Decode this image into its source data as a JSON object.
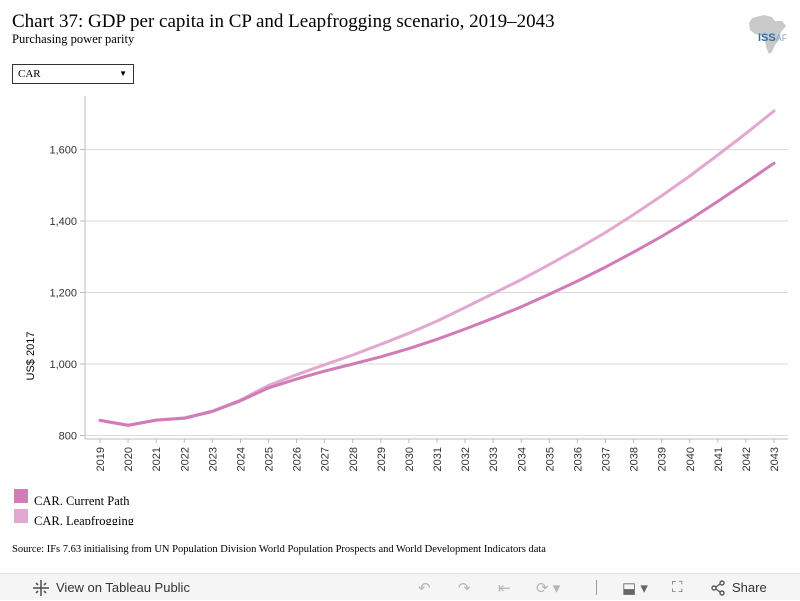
{
  "header": {
    "title": "Chart 37: GDP per capita in CP and Leapfrogging scenario, 2019–2043",
    "subtitle": "Purchasing power parity",
    "logo_text": "ISS",
    "logo_suffix": "AF"
  },
  "filter": {
    "selected": "CAR"
  },
  "chart_data": {
    "type": "line",
    "ylabel": "US$ 2017",
    "ylim": [
      790,
      1750
    ],
    "yticks": [
      800,
      1000,
      1200,
      1400,
      1600
    ],
    "ytick_labels": [
      "800",
      "1,000",
      "1,200",
      "1,400",
      "1,600"
    ],
    "x": [
      "2019",
      "2020",
      "2021",
      "2022",
      "2023",
      "2024",
      "2025",
      "2026",
      "2027",
      "2028",
      "2029",
      "2030",
      "2031",
      "2032",
      "2033",
      "2034",
      "2035",
      "2036",
      "2037",
      "2038",
      "2039",
      "2040",
      "2041",
      "2042",
      "2043"
    ],
    "grid": "horizontal",
    "series": [
      {
        "name": "CAR. Current Path",
        "color": "#d17bb7",
        "values": [
          842,
          828,
          843,
          848,
          867,
          897,
          933,
          958,
          980,
          1000,
          1020,
          1043,
          1069,
          1098,
          1128,
          1160,
          1195,
          1232,
          1271,
          1313,
          1357,
          1404,
          1455,
          1508,
          1562
        ]
      },
      {
        "name": "CAR. Leapfrogging",
        "color": "#e3a8d0",
        "values": [
          842,
          829,
          843,
          849,
          868,
          899,
          940,
          970,
          998,
          1025,
          1055,
          1086,
          1120,
          1158,
          1197,
          1236,
          1278,
          1322,
          1368,
          1418,
          1471,
          1526,
          1585,
          1645,
          1708
        ]
      }
    ]
  },
  "legend": {
    "items": [
      {
        "label": "CAR. Current Path",
        "color": "#d17bb7"
      },
      {
        "label": "CAR. Leapfrogging",
        "color": "#e3a8d0"
      }
    ]
  },
  "source": "Source: IFs 7.63 initialising from UN Population Division World Population Prospects and World Development Indicators data",
  "toolbar": {
    "view_label": "View on Tableau Public",
    "share_label": "Share",
    "icons": [
      "tableau-icon",
      "undo-icon",
      "redo-icon",
      "revert-icon",
      "refresh-icon",
      "download-icon",
      "fullscreen-icon",
      "share-icon"
    ]
  }
}
